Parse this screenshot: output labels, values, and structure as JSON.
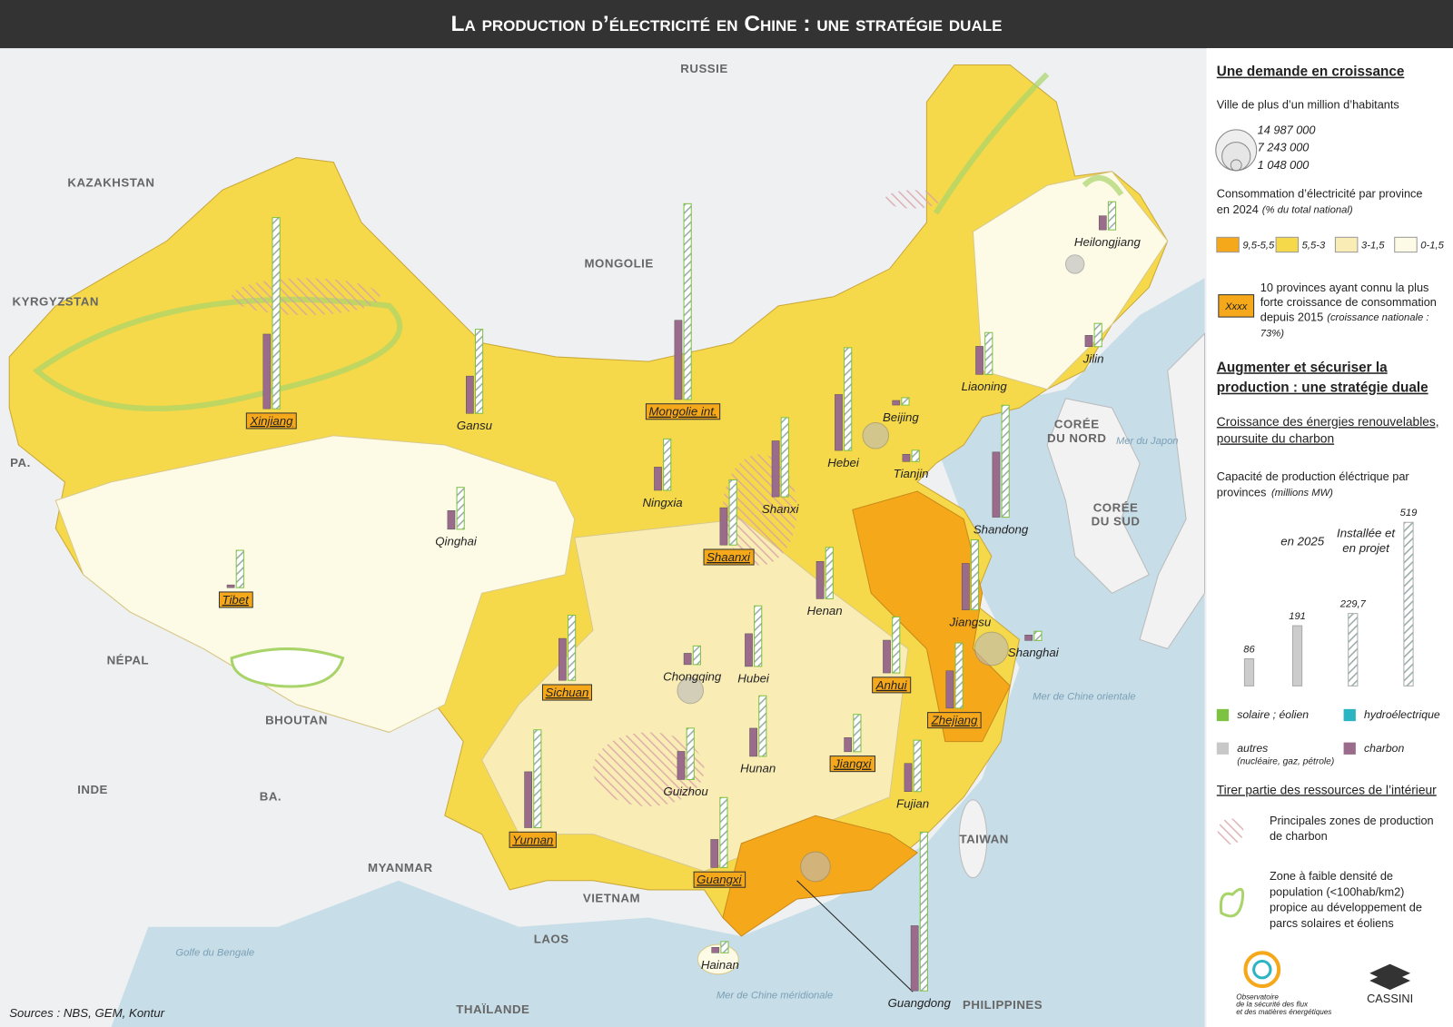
{
  "header": {
    "title": "La production d’électricité en Chine : une stratégie duale"
  },
  "map": {
    "countries": [
      "RUSSIE",
      "KAZAKHSTAN",
      "KYRGYZSTAN",
      "MONGOLIE",
      "PA.",
      "NÉPAL",
      "BHOUTAN",
      "INDE",
      "BA.",
      "MYANMAR",
      "VIETNAM",
      "LAOS",
      "THAÏLANDE",
      "PHILIPPINES",
      "TAIWAN",
      "CORÉE DU NORD",
      "CORÉE DU SUD"
    ],
    "seas": [
      "Mer du Japon",
      "Mer de Chine orientale",
      "Mer de Chine méridionale",
      "Golfe du Bengale"
    ],
    "provinces": [
      {
        "name": "Xinjiang",
        "capacity_2025": 244,
        "capacity_planned": 625,
        "top_growth": true
      },
      {
        "name": "Gansu",
        "capacity_2025": 122,
        "capacity_planned": 275,
        "top_growth": false
      },
      {
        "name": "Mongolie int.",
        "capacity_2025": 259,
        "capacity_planned": 640,
        "top_growth": true
      },
      {
        "name": "Heilongjiang",
        "capacity_2025": 46,
        "capacity_planned": 92,
        "top_growth": false
      },
      {
        "name": "Jilin",
        "capacity_2025": 37,
        "capacity_planned": 76,
        "top_growth": false
      },
      {
        "name": "Liaoning",
        "capacity_2025": 92,
        "capacity_planned": 137,
        "top_growth": false
      },
      {
        "name": "Beijing",
        "capacity_2025": 15,
        "capacity_planned": 24,
        "top_growth": false
      },
      {
        "name": "Tianjin",
        "capacity_2025": 24,
        "capacity_planned": 37,
        "top_growth": false
      },
      {
        "name": "Hebei",
        "capacity_2025": 183,
        "capacity_planned": 336,
        "top_growth": false
      },
      {
        "name": "Ningxia",
        "capacity_2025": 76,
        "capacity_planned": 168,
        "top_growth": false
      },
      {
        "name": "Shanxi",
        "capacity_2025": 183,
        "capacity_planned": 259,
        "top_growth": false
      },
      {
        "name": "Shandong",
        "capacity_2025": 213,
        "capacity_planned": 366,
        "top_growth": false
      },
      {
        "name": "Qinghai",
        "capacity_2025": 61,
        "capacity_planned": 137,
        "top_growth": false
      },
      {
        "name": "Shaanxi",
        "capacity_2025": 122,
        "capacity_planned": 213,
        "top_growth": true
      },
      {
        "name": "Tibet",
        "capacity_2025": 9,
        "capacity_planned": 122,
        "top_growth": true
      },
      {
        "name": "Henan",
        "capacity_2025": 122,
        "capacity_planned": 168,
        "top_growth": false
      },
      {
        "name": "Jiangsu",
        "capacity_2025": 152,
        "capacity_planned": 229,
        "top_growth": false
      },
      {
        "name": "Shanghai",
        "capacity_2025": 18,
        "capacity_planned": 30,
        "top_growth": false
      },
      {
        "name": "Sichuan",
        "capacity_2025": 137,
        "capacity_planned": 213,
        "top_growth": true
      },
      {
        "name": "Chongqing",
        "capacity_2025": 37,
        "capacity_planned": 61,
        "top_growth": false
      },
      {
        "name": "Hubei",
        "capacity_2025": 107,
        "capacity_planned": 198,
        "top_growth": false
      },
      {
        "name": "Anhui",
        "capacity_2025": 107,
        "capacity_planned": 183,
        "top_growth": true
      },
      {
        "name": "Zhejiang",
        "capacity_2025": 122,
        "capacity_planned": 213,
        "top_growth": true
      },
      {
        "name": "Yunnan",
        "capacity_2025": 183,
        "capacity_planned": 320,
        "top_growth": true
      },
      {
        "name": "Guizhou",
        "capacity_2025": 92,
        "capacity_planned": 168,
        "top_growth": false
      },
      {
        "name": "Hunan",
        "capacity_2025": 92,
        "capacity_planned": 198,
        "top_growth": false
      },
      {
        "name": "Jiangxi",
        "capacity_2025": 46,
        "capacity_planned": 122,
        "top_growth": true
      },
      {
        "name": "Fujian",
        "capacity_2025": 92,
        "capacity_planned": 168,
        "top_growth": false
      },
      {
        "name": "Guangxi",
        "capacity_2025": 92,
        "capacity_planned": 229,
        "top_growth": true
      },
      {
        "name": "Hainan",
        "capacity_2025": 18,
        "capacity_planned": 37,
        "top_growth": false
      },
      {
        "name": "Guangdong",
        "capacity_2025": 213,
        "capacity_planned": 519,
        "top_growth": false
      }
    ],
    "source": "Sources : NBS, GEM, Kontur"
  },
  "legend": {
    "demand_title": "Une demande en croissance",
    "cities_label": "Ville de plus d’un million d’habitants",
    "city_sizes": [
      {
        "value": 14987000,
        "label": "14 987 000"
      },
      {
        "value": 7243000,
        "label": "7 243 000"
      },
      {
        "value": 1048000,
        "label": "1 048 000"
      }
    ],
    "consumption_label": [
      "Consommation d’électricité par province",
      "en 2024"
    ],
    "consumption_note": "(% du total national)",
    "consumption_classes": [
      {
        "label": "9,5-5,5",
        "color": "#f5a81a"
      },
      {
        "label": "5,5-3",
        "color": "#f5d94a"
      },
      {
        "label": "3-1,5",
        "color": "#f9ecb5"
      },
      {
        "label": "0-1,5",
        "color": "#fdfae6"
      }
    ],
    "growth_sample": "Xxxx",
    "growth_label": [
      "10 provinces ayant connu la plus",
      "forte croissance de consommation",
      "depuis 2015"
    ],
    "growth_note": [
      "(croissance nationale :",
      "73%)"
    ],
    "production_title": [
      "Augmenter et sécuriser la",
      "production : une stratégie duale"
    ],
    "renewables_title": [
      "Croissance des énergies renouvelables,",
      "poursuite du charbon"
    ],
    "capacity_label": [
      "Capacité de production éléctrique par",
      "provinces"
    ],
    "capacity_unit": "(millions MW)",
    "period_2025": "en 2025",
    "period_planned": [
      "Installée et",
      "en projet"
    ],
    "sample_bars": [
      86,
      191,
      {
        "value": 229.7,
        "label": "229,7"
      },
      519
    ],
    "sources": [
      {
        "label": "solaire ; éolien",
        "color": "#7dc242"
      },
      {
        "label": "hydroélectrique",
        "color": "#2bb5c2"
      },
      {
        "label": "autres",
        "color": "#c8c8c8"
      },
      {
        "label": "charbon",
        "color": "#9b6b8c"
      }
    ],
    "others_note": "(nucléaire, gaz, pétrole)",
    "interior_title": "Tirer partie des ressources de l’intérieur",
    "coal_zones": [
      "Principales zones de production",
      "de charbon"
    ],
    "low_density": [
      "Zone à faible densité  de",
      "population (<100hab/km2)",
      "propice au développement de",
      "parcs solaires et éoliens"
    ],
    "logo_ofme": [
      "Observatoire",
      "de la sécurité des flux",
      "et des matières énergétiques"
    ],
    "logo_cassini": "CASSINI"
  }
}
